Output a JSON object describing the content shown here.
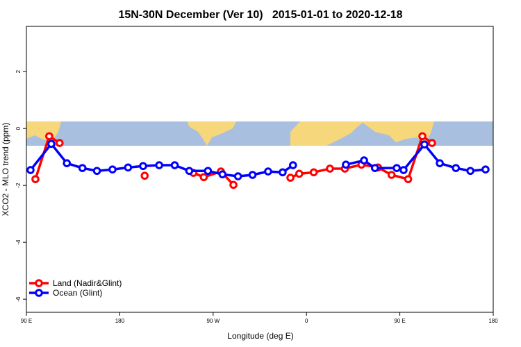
{
  "chart_data": {
    "type": "line",
    "title": "15N-30N December (Ver 10)   2015-01-01 to 2020-12-18",
    "x_label": "Longitude (deg E)",
    "y_label": "XCO2 - MLO trend (ppm)",
    "xlim": [
      90,
      540
    ],
    "ylim": [
      -6.46,
      3.59
    ],
    "xticks": [
      {
        "value": 90,
        "label": "90 E"
      },
      {
        "value": 180,
        "label": "180"
      },
      {
        "value": 270,
        "label": "90 W"
      },
      {
        "value": 360,
        "label": "0"
      },
      {
        "value": 450,
        "label": "90 E"
      },
      {
        "value": 540,
        "label": "180"
      }
    ],
    "yticks": [
      2,
      0,
      -2,
      -4,
      -6
    ],
    "legend": "bottom-left",
    "series": [
      {
        "name": "Land (Nadir&Glint)",
        "color": "#ff0000",
        "x": [
          98.7,
          112,
          122,
          null,
          204,
          null,
          251,
          261,
          277.5,
          289.6,
          null,
          344.5,
          353,
          367,
          382.6,
          397,
          413,
          429,
          442,
          458,
          471.7,
          481
        ],
        "values": [
          -1.78,
          -0.27,
          -0.51,
          null,
          -1.66,
          null,
          -1.56,
          -1.71,
          -1.51,
          -1.98,
          null,
          -1.73,
          -1.59,
          -1.54,
          -1.41,
          -1.41,
          -1.27,
          -1.37,
          -1.63,
          -1.78,
          -0.27,
          -0.51
        ]
      },
      {
        "name": "Ocean (Glint)",
        "color": "#0000ff",
        "x": [
          94,
          114,
          129,
          144,
          158,
          173,
          188,
          202.5,
          218,
          233,
          247,
          265,
          279,
          294,
          308,
          323,
          337,
          347,
          null,
          398,
          415.5,
          426,
          447,
          453.6,
          473.7,
          488.5,
          504,
          518,
          532.6
        ],
        "values": [
          -1.46,
          -0.54,
          -1.22,
          -1.39,
          -1.49,
          -1.44,
          -1.37,
          -1.32,
          -1.29,
          -1.29,
          -1.49,
          -1.49,
          -1.61,
          -1.68,
          -1.63,
          -1.51,
          -1.54,
          -1.29,
          null,
          -1.27,
          -1.12,
          -1.39,
          -1.39,
          -1.46,
          -0.56,
          -1.22,
          -1.39,
          -1.49,
          -1.44
        ]
      }
    ]
  }
}
